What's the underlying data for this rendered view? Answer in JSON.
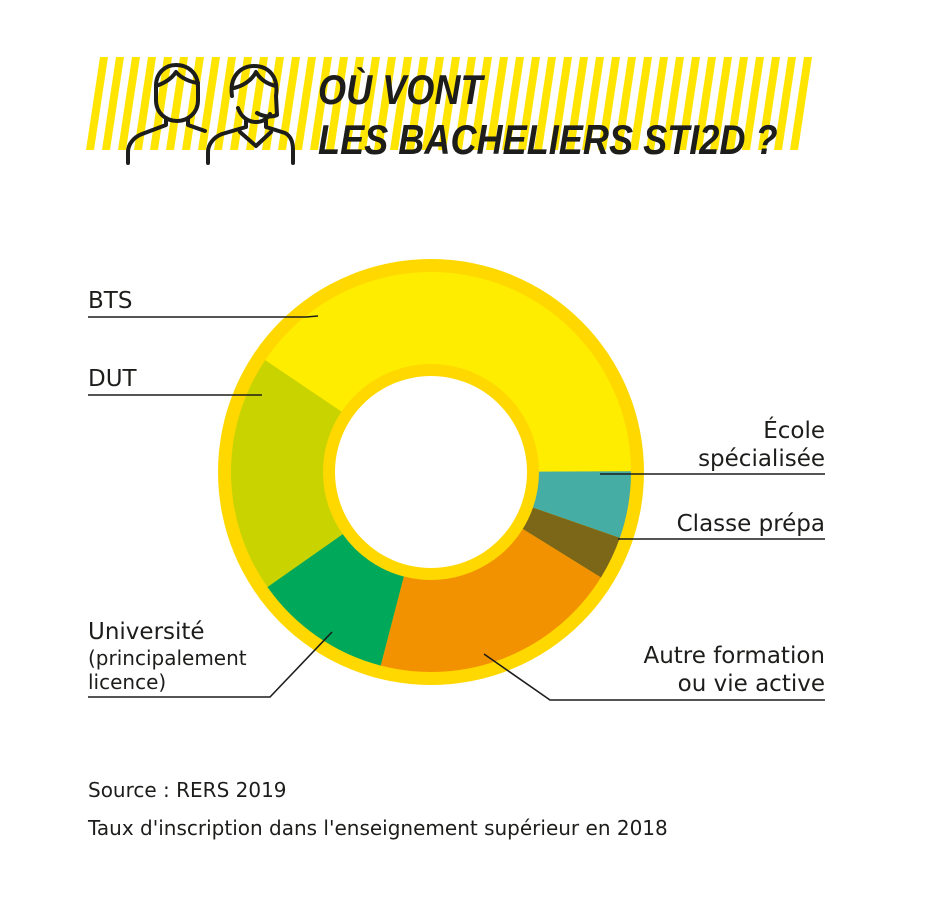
{
  "header": {
    "title_line1": "OÙ VONT",
    "title_line2": "LES BACHELIERS STI2D ?",
    "people_icon": "two-people-icon"
  },
  "chart_data": {
    "type": "pie",
    "style": "donut",
    "categories": [
      "BTS",
      "École spécialisée",
      "Classe prépa",
      "Autre formation ou vie active",
      "Université (principalement licence)",
      "DUT"
    ],
    "values": [
      40.5,
      5.4,
      3.5,
      20.2,
      11.2,
      19.2
    ],
    "colors": [
      "#ffed00",
      "#45ada4",
      "#7c6618",
      "#f39200",
      "#00a85a",
      "#c9d300"
    ],
    "ring_color": "#ffd800"
  },
  "labels": {
    "bts": "BTS",
    "dut": "DUT",
    "ecole_line1": "École",
    "ecole_line2": "spécialisée",
    "prepa": "Classe prépa",
    "universite": "Université",
    "universite_sub1": "(principalement",
    "universite_sub2": "licence)",
    "autre_line1": "Autre formation",
    "autre_line2": "ou vie active"
  },
  "footer": {
    "source": "Source : RERS 2019",
    "caption": "Taux d'inscription dans l'enseignement supérieur en 2018"
  },
  "colors": {
    "stripe": "#ffe500",
    "text": "#1d1d1b"
  }
}
